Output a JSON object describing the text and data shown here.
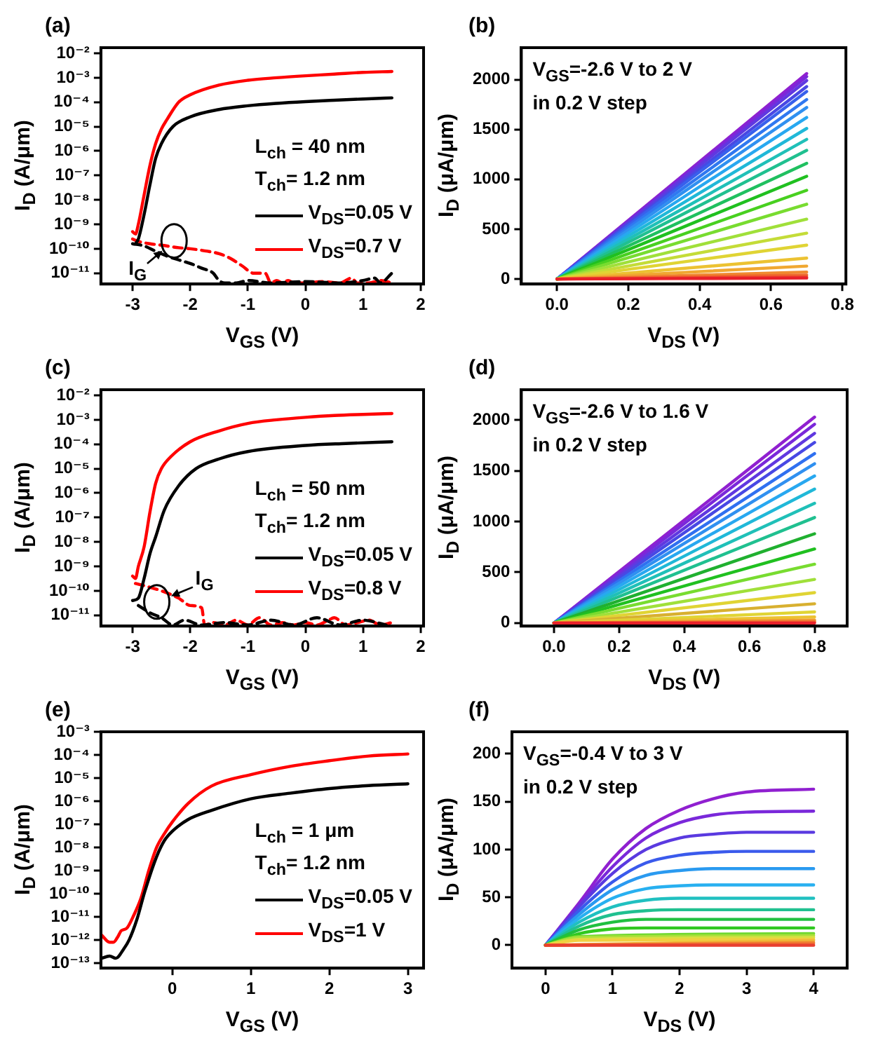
{
  "chart_data": [
    {
      "type": "line",
      "title": "(a)",
      "xlabel": "V$_{GS}$ (V)",
      "ylabel": "I$_{D}$ (A/μm)",
      "log": "y",
      "legend": "right",
      "xlim": [
        -3.55,
        2.05
      ],
      "xticks": [
        -3,
        -2,
        -1,
        0,
        1,
        2
      ],
      "ylim": [
        3.6e-12,
        0.017
      ],
      "yticks": [
        {
          "value": 0.01,
          "label": "10⁻²"
        },
        {
          "value": 0.001,
          "label": "10⁻³"
        },
        {
          "value": 0.0001,
          "label": "10⁻⁴"
        },
        {
          "value": 1e-05,
          "label": "10⁻⁵"
        },
        {
          "value": 1e-06,
          "label": "10⁻⁶"
        },
        {
          "value": 1e-07,
          "label": "10⁻⁷"
        },
        {
          "value": 1e-08,
          "label": "10⁻⁸"
        },
        {
          "value": 1e-09,
          "label": "10⁻⁹"
        },
        {
          "value": 1e-10,
          "label": "10⁻¹⁰"
        },
        {
          "value": 1e-11,
          "label": "10⁻¹¹"
        }
      ],
      "annotations": [
        "L$_{ch}$ = 40 nm",
        "T$_{ch}$= 1.2 nm",
        {
          "text": "I$_{G}$",
          "x": -2.28,
          "y": 2.1e-10
        }
      ],
      "series": [
        {
          "name": "V$_{DS}$=0.05 V",
          "color": "#000000",
          "x": [
            -2.95,
            -2.9,
            -2.8,
            -2.7,
            -2.6,
            -2.5,
            -2.3,
            -2,
            -1.5,
            -1,
            -0.5,
            0,
            0.5,
            1,
            1.5
          ],
          "values": [
            1.6e-10,
            2.5e-10,
            2.5e-09,
            4e-08,
            5e-07,
            2e-06,
            1e-05,
            2.5e-05,
            5e-05,
            7.1e-05,
            8.9e-05,
            0.000105,
            0.00012,
            0.000135,
            0.00015
          ]
        },
        {
          "name": "V$_{DS}$=0.7 V",
          "color": "#ff0000",
          "x": [
            -3,
            -2.95,
            -2.9,
            -2.8,
            -2.7,
            -2.6,
            -2.5,
            -2.4,
            -2.2,
            -2,
            -1.5,
            -1,
            -0.5,
            0,
            0.5,
            1,
            1.5
          ],
          "values": [
            5e-10,
            4e-10,
            1e-09,
            1.6e-08,
            2.5e-07,
            2e-06,
            7.9e-06,
            2e-05,
            0.0001,
            0.0002,
            0.0005,
            0.00079,
            0.001,
            0.0012,
            0.0014,
            0.00166,
            0.0018
          ]
        },
        {
          "color": "#000000",
          "line_style": "dashed",
          "x": [
            -3,
            -2.8,
            -2.6,
            -2.4,
            -2.2,
            -2,
            -1.8,
            -1.6,
            -1.5,
            -1.4,
            -1.2,
            -1,
            -0.6,
            0,
            0.6,
            1,
            1.2,
            1.3,
            1.5
          ],
          "values": [
            1.6e-10,
            1.3e-10,
            7.9e-11,
            5e-11,
            3.5e-11,
            2.5e-11,
            1.6e-11,
            1e-11,
            5e-12,
            4e-12,
            4e-12,
            5e-12,
            4e-12,
            4.5e-12,
            4e-12,
            5e-12,
            6.3e-12,
            4e-12,
            1e-11
          ]
        },
        {
          "color": "#ff0000",
          "line_style": "dashed",
          "x": [
            -3,
            -2.9,
            -2.7,
            -2.5,
            -2.2,
            -2,
            -1.7,
            -1.5,
            -1.3,
            -1.1,
            -0.9,
            -0.7,
            -0.6,
            -0.5,
            -0.4,
            -0.3,
            -0.2,
            0,
            0.3,
            0.6,
            0.8,
            0.9,
            1.1,
            1.3,
            1.5
          ],
          "values": [
            2.5e-10,
            2e-10,
            1.6e-10,
            1.4e-10,
            1.1e-10,
            1e-10,
            7.9e-11,
            6.3e-11,
            4e-11,
            2e-11,
            1e-11,
            1e-11,
            4e-12,
            5e-12,
            4e-12,
            5e-12,
            4e-12,
            4e-12,
            4.5e-12,
            4e-12,
            6.3e-12,
            4e-12,
            4e-12,
            5e-12,
            4e-12
          ]
        }
      ]
    },
    {
      "type": "line",
      "title": "(b)",
      "xlabel": "V$_{DS}$ (V)",
      "ylabel": "I$_{D}$ (μA/μm)",
      "xlim": [
        -0.1,
        0.81
      ],
      "xticks": [
        {
          "value": 0,
          "label": "0.0"
        },
        0.2,
        0.4,
        0.6,
        0.8
      ],
      "ylim": [
        -50,
        2320
      ],
      "yticks": [
        0,
        500,
        1000,
        1500,
        2000
      ],
      "annotations": [
        "V$_{GS}$=-2.6 V to 2 V",
        "in 0.2 V step"
      ],
      "series": [
        {
          "color": "#e8202a",
          "x": [
            0,
            0.7
          ],
          "values": [
            0,
            10
          ]
        },
        {
          "color": "#ec4a2c",
          "x": [
            0,
            0.7
          ],
          "values": [
            0,
            20
          ]
        },
        {
          "color": "#ef6a2e",
          "x": [
            0,
            0.7
          ],
          "values": [
            0,
            40
          ]
        },
        {
          "color": "#f08a30",
          "x": [
            0,
            0.7
          ],
          "values": [
            0,
            70
          ]
        },
        {
          "color": "#f0a832",
          "x": [
            0,
            0.7
          ],
          "values": [
            0,
            130
          ]
        },
        {
          "color": "#ecc232",
          "x": [
            0,
            0.7
          ],
          "values": [
            0,
            210
          ]
        },
        {
          "color": "#e0d434",
          "x": [
            0,
            0.7
          ],
          "values": [
            0,
            340
          ]
        },
        {
          "color": "#c4dc38",
          "x": [
            0,
            0.7
          ],
          "values": [
            0,
            460
          ]
        },
        {
          "color": "#a0e03a",
          "x": [
            0,
            0.7
          ],
          "values": [
            0,
            600
          ]
        },
        {
          "color": "#78dc30",
          "x": [
            0,
            0.7
          ],
          "values": [
            0,
            750
          ]
        },
        {
          "color": "#48d020",
          "x": [
            0,
            0.7
          ],
          "values": [
            0,
            890
          ]
        },
        {
          "color": "#20c020",
          "x": [
            0,
            0.7
          ],
          "values": [
            0,
            1030
          ]
        },
        {
          "color": "#20c060",
          "x": [
            0,
            0.7
          ],
          "values": [
            0,
            1160
          ]
        },
        {
          "color": "#20c090",
          "x": [
            0,
            0.7
          ],
          "values": [
            0,
            1290
          ]
        },
        {
          "color": "#20c0b8",
          "x": [
            0,
            0.7
          ],
          "values": [
            0,
            1400
          ]
        },
        {
          "color": "#20b8d8",
          "x": [
            0,
            0.7
          ],
          "values": [
            0,
            1510
          ]
        },
        {
          "color": "#28a8f0",
          "x": [
            0,
            0.7
          ],
          "values": [
            0,
            1620
          ]
        },
        {
          "color": "#3090f0",
          "x": [
            0,
            0.7
          ],
          "values": [
            0,
            1720
          ]
        },
        {
          "color": "#3078f0",
          "x": [
            0,
            0.7
          ],
          "values": [
            0,
            1800
          ]
        },
        {
          "color": "#3860ec",
          "x": [
            0,
            0.7
          ],
          "values": [
            0,
            1880
          ]
        },
        {
          "color": "#4848e4",
          "x": [
            0,
            0.7
          ],
          "values": [
            0,
            1930
          ]
        },
        {
          "color": "#6038e0",
          "x": [
            0,
            0.7
          ],
          "values": [
            0,
            1990
          ]
        },
        {
          "color": "#7a28da",
          "x": [
            0,
            0.7
          ],
          "values": [
            0,
            2030
          ]
        },
        {
          "color": "#9020d0",
          "x": [
            0,
            0.7
          ],
          "values": [
            0,
            2060
          ]
        }
      ]
    },
    {
      "type": "line",
      "title": "(c)",
      "xlabel": "V$_{GS}$ (V)",
      "ylabel": "I$_{D}$ (A/μm)",
      "log": "y",
      "legend": "right",
      "xlim": [
        -3.55,
        2.05
      ],
      "xticks": [
        -3,
        -2,
        -1,
        0,
        1,
        2
      ],
      "ylim": [
        3.6e-12,
        0.017
      ],
      "yticks": [
        {
          "value": 0.01,
          "label": "10⁻²"
        },
        {
          "value": 0.001,
          "label": "10⁻³"
        },
        {
          "value": 0.0001,
          "label": "10⁻⁴"
        },
        {
          "value": 1e-05,
          "label": "10⁻⁵"
        },
        {
          "value": 1e-06,
          "label": "10⁻⁶"
        },
        {
          "value": 1e-07,
          "label": "10⁻⁷"
        },
        {
          "value": 1e-08,
          "label": "10⁻⁸"
        },
        {
          "value": 1e-09,
          "label": "10⁻⁹"
        },
        {
          "value": 1e-10,
          "label": "10⁻¹⁰"
        },
        {
          "value": 1e-11,
          "label": "10⁻¹¹"
        }
      ],
      "annotations": [
        "L$_{ch}$ = 50 nm",
        "T$_{ch}$= 1.2 nm",
        {
          "text": "I$_{G}$",
          "x": -2.58,
          "y": 3.5e-11
        }
      ],
      "series": [
        {
          "name": "V$_{DS}$=0.05 V",
          "color": "#000000",
          "x": [
            -3,
            -2.9,
            -2.8,
            -2.7,
            -2.6,
            -2.45,
            -2.2,
            -1.9,
            -1.5,
            -1,
            0,
            0.7,
            1.5
          ],
          "values": [
            4e-11,
            5e-11,
            3.2e-10,
            3.2e-09,
            1.6e-08,
            2e-07,
            2e-06,
            1e-05,
            2.5e-05,
            5e-05,
            8.9e-05,
            0.000107,
            0.000126
          ]
        },
        {
          "name": "V$_{DS}$=0.8 V",
          "color": "#ff0000",
          "x": [
            -3,
            -2.95,
            -2.9,
            -2.8,
            -2.7,
            -2.6,
            -2.5,
            -2.33,
            -2,
            -1.5,
            -1,
            -0.5,
            0,
            0.5,
            1,
            1.5
          ],
          "values": [
            4e-10,
            3.2e-10,
            1e-09,
            6.3e-09,
            1.6e-07,
            2.5e-06,
            1e-05,
            3.2e-05,
            0.000126,
            0.00035,
            0.00071,
            0.001,
            0.00126,
            0.0015,
            0.00166,
            0.0018
          ]
        },
        {
          "color": "#000000",
          "line_style": "dashed",
          "x": [
            -2.9,
            -2.7,
            -2.5,
            -2.3,
            -2.1,
            -1.8,
            -1.4,
            -1,
            -0.6,
            -0.2,
            0.2,
            0.6,
            1,
            1.4
          ],
          "values": [
            2.5e-11,
            1.26e-11,
            7.9e-12,
            4e-12,
            6.3e-12,
            4e-12,
            5e-12,
            4e-12,
            6.3e-12,
            4e-12,
            7.9e-12,
            4e-12,
            6.3e-12,
            4e-12
          ]
        },
        {
          "color": "#ff0000",
          "line_style": "dashed",
          "x": [
            -2.95,
            -2.7,
            -2.5,
            -2.2,
            -2,
            -1.8,
            -1.75,
            -1.6,
            -1.4,
            -1.2,
            -1,
            -0.8,
            -0.6,
            -0.4,
            -0.2,
            0,
            0.2,
            0.4,
            0.5,
            0.7,
            0.9,
            1.1,
            1.3,
            1.5
          ],
          "values": [
            2e-10,
            1.4e-10,
            1e-10,
            5e-11,
            2.5e-11,
            2e-11,
            4e-12,
            5e-12,
            4e-12,
            6.3e-12,
            4e-12,
            7.9e-12,
            4e-12,
            5e-12,
            4e-12,
            5e-12,
            4e-12,
            6.3e-12,
            7.9e-12,
            4e-12,
            5e-12,
            6.3e-12,
            4e-12,
            5e-12
          ]
        }
      ]
    },
    {
      "type": "line",
      "title": "(d)",
      "xlabel": "V$_{DS}$ (V)",
      "ylabel": "I$_{D}$ (μA/μm)",
      "xlim": [
        -0.1,
        0.9
      ],
      "xticks": [
        {
          "value": 0,
          "label": "0.0"
        },
        0.2,
        0.4,
        0.6,
        0.8
      ],
      "ylim": [
        -30,
        2300
      ],
      "yticks": [
        0,
        500,
        1000,
        1500,
        2000
      ],
      "annotations": [
        "V$_{GS}$=-2.6 V to 1.6 V",
        "in 0.2 V step"
      ],
      "series": [
        {
          "color": "#e8202a",
          "x": [
            0,
            0.8
          ],
          "values": [
            0,
            0
          ]
        },
        {
          "color": "#ef6a2e",
          "x": [
            0,
            0.8
          ],
          "values": [
            0,
            10
          ]
        },
        {
          "color": "#f08a30",
          "x": [
            0,
            0.8
          ],
          "values": [
            0,
            20
          ]
        },
        {
          "color": "#f0a832",
          "x": [
            0,
            0.8
          ],
          "values": [
            0,
            30
          ]
        },
        {
          "color": "#ecc232",
          "x": [
            0,
            0.8
          ],
          "values": [
            0,
            60
          ]
        },
        {
          "color": "#e0d434",
          "x": [
            0,
            0.8
          ],
          "values": [
            0,
            110
          ]
        },
        {
          "color": "#d8b030",
          "x": [
            0,
            0.8
          ],
          "values": [
            0,
            190
          ]
        },
        {
          "color": "#e0d434",
          "x": [
            0,
            0.8
          ],
          "values": [
            0,
            300
          ]
        },
        {
          "color": "#a0e03a",
          "x": [
            0,
            0.8
          ],
          "values": [
            0,
            430
          ]
        },
        {
          "color": "#78dc30",
          "x": [
            0,
            0.8
          ],
          "values": [
            0,
            580
          ]
        },
        {
          "color": "#20c020",
          "x": [
            0,
            0.8
          ],
          "values": [
            0,
            730
          ]
        },
        {
          "color": "#20b030",
          "x": [
            0,
            0.8
          ],
          "values": [
            0,
            880
          ]
        },
        {
          "color": "#20c090",
          "x": [
            0,
            0.8
          ],
          "values": [
            0,
            1040
          ]
        },
        {
          "color": "#20c0b8",
          "x": [
            0,
            0.8
          ],
          "values": [
            0,
            1180
          ]
        },
        {
          "color": "#20b8d8",
          "x": [
            0,
            0.8
          ],
          "values": [
            0,
            1320
          ]
        },
        {
          "color": "#28a8f0",
          "x": [
            0,
            0.8
          ],
          "values": [
            0,
            1450
          ]
        },
        {
          "color": "#3090f0",
          "x": [
            0,
            0.8
          ],
          "values": [
            0,
            1570
          ]
        },
        {
          "color": "#3070f0",
          "x": [
            0,
            0.8
          ],
          "values": [
            0,
            1670
          ]
        },
        {
          "color": "#4848e4",
          "x": [
            0,
            0.8
          ],
          "values": [
            0,
            1780
          ]
        },
        {
          "color": "#6038e0",
          "x": [
            0,
            0.8
          ],
          "values": [
            0,
            1870
          ]
        },
        {
          "color": "#7a28da",
          "x": [
            0,
            0.8
          ],
          "values": [
            0,
            1960
          ]
        },
        {
          "color": "#9020d0",
          "x": [
            0,
            0.8
          ],
          "values": [
            0,
            2030
          ]
        }
      ]
    },
    {
      "type": "line",
      "title": "(e)",
      "xlabel": "V$_{GS}$ (V)",
      "ylabel": "I$_{D}$ (A/μm)",
      "log": "y",
      "legend": "right",
      "xlim": [
        -0.91,
        3.2
      ],
      "xticks": [
        0,
        1,
        2,
        3
      ],
      "ylim": [
        6e-14,
        0.001
      ],
      "yticks": [
        {
          "value": 0.001,
          "label": "10⁻³"
        },
        {
          "value": 0.0001,
          "label": "10⁻⁴"
        },
        {
          "value": 1e-05,
          "label": "10⁻⁵"
        },
        {
          "value": 1e-06,
          "label": "10⁻⁶"
        },
        {
          "value": 1e-07,
          "label": "10⁻⁷"
        },
        {
          "value": 1e-08,
          "label": "10⁻⁸"
        },
        {
          "value": 1e-09,
          "label": "10⁻⁹"
        },
        {
          "value": 1e-10,
          "label": "10⁻¹⁰"
        },
        {
          "value": 1e-11,
          "label": "10⁻¹¹"
        },
        {
          "value": 1e-12,
          "label": "10⁻¹²"
        },
        {
          "value": 1e-13,
          "label": "10⁻¹³"
        }
      ],
      "annotations": [
        "L$_{ch}$ = 1 μm",
        "T$_{ch}$= 1.2 nm"
      ],
      "series": [
        {
          "name": "V$_{DS}$=0.05 V",
          "color": "#000000",
          "x": [
            -0.9,
            -0.8,
            -0.72,
            -0.62,
            -0.55,
            -0.45,
            -0.35,
            -0.2,
            -0.1,
            0,
            0.2,
            0.5,
            1,
            1.5,
            2,
            2.5,
            3
          ],
          "values": [
            1.6e-13,
            2e-13,
            1.6e-13,
            4e-13,
            1e-12,
            7.9e-12,
            1.26e-10,
            4e-09,
            2e-08,
            5e-08,
            1.6e-07,
            4e-07,
            1.26e-06,
            2.2e-06,
            3.5e-06,
            4.7e-06,
            5.6e-06
          ]
        },
        {
          "name": "V$_{DS}$=1 V",
          "color": "#ff0000",
          "x": [
            -0.9,
            -0.8,
            -0.75,
            -0.7,
            -0.65,
            -0.58,
            -0.5,
            -0.4,
            -0.3,
            -0.2,
            -0.1,
            0,
            0.2,
            0.5,
            1,
            1.5,
            2,
            2.5,
            3
          ],
          "values": [
            1.6e-12,
            7.9e-13,
            7.9e-13,
            1.26e-12,
            2.5e-12,
            3.2e-12,
            1e-11,
            6.3e-11,
            1e-09,
            1e-08,
            4e-08,
            1.26e-07,
            7.9e-07,
            4.5e-06,
            1.4e-05,
            3.2e-05,
            5.6e-05,
            8.9e-05,
            0.00011
          ]
        }
      ]
    },
    {
      "type": "line",
      "title": "(f)",
      "xlabel": "V$_{DS}$ (V)",
      "ylabel": "I$_{D}$ (μA/μm)",
      "xlim": [
        -0.5,
        4.5
      ],
      "xticks": [
        0,
        1,
        2,
        3,
        4
      ],
      "ylim": [
        -24,
        223
      ],
      "yticks": [
        0,
        50,
        100,
        150,
        200
      ],
      "annotations": [
        "V$_{GS}$=-0.4 V to 3 V",
        "in 0.2 V step"
      ],
      "series": [
        {
          "color": "#e84030",
          "x": [
            0,
            4
          ],
          "values": [
            0,
            0
          ]
        },
        {
          "color": "#f07830",
          "x": [
            0,
            4
          ],
          "values": [
            0,
            2
          ]
        },
        {
          "color": "#f09830",
          "x": [
            0,
            4
          ],
          "values": [
            0,
            3
          ]
        },
        {
          "color": "#f0b838",
          "x": [
            0,
            4
          ],
          "values": [
            0,
            5
          ]
        },
        {
          "color": "#f0d040",
          "x": [
            0,
            0.5,
            4
          ],
          "values": [
            0,
            5,
            6
          ]
        },
        {
          "color": "#d8e040",
          "x": [
            0,
            0.5,
            4
          ],
          "values": [
            0,
            6,
            8
          ]
        },
        {
          "color": "#a8e03a",
          "x": [
            0,
            0.5,
            4
          ],
          "values": [
            0,
            8,
            10
          ]
        },
        {
          "color": "#70d830",
          "x": [
            0,
            0.5,
            4
          ],
          "values": [
            0,
            9,
            12
          ]
        },
        {
          "color": "#30c820",
          "x": [
            0,
            0.5,
            1,
            1.5,
            4
          ],
          "values": [
            0,
            12,
            17,
            18,
            18
          ]
        },
        {
          "color": "#20c040",
          "x": [
            0,
            0.5,
            1,
            1.5,
            2,
            4
          ],
          "values": [
            0,
            16,
            24,
            27,
            27,
            27
          ]
        },
        {
          "color": "#20c090",
          "x": [
            0,
            0.5,
            1,
            1.5,
            2,
            4
          ],
          "values": [
            0,
            20,
            32,
            36,
            37,
            37
          ]
        },
        {
          "color": "#20c0c0",
          "x": [
            0,
            0.5,
            1,
            1.5,
            2,
            2.5,
            4
          ],
          "values": [
            0,
            24,
            40,
            47,
            49,
            49,
            49
          ]
        },
        {
          "color": "#28b0f0",
          "x": [
            0,
            0.5,
            1,
            1.5,
            2,
            2.5,
            3,
            4
          ],
          "values": [
            0,
            28,
            49,
            59,
            62,
            63,
            63,
            63
          ]
        },
        {
          "color": "#2a9af0",
          "x": [
            0,
            0.5,
            1,
            1.5,
            2,
            2.5,
            3,
            4
          ],
          "values": [
            0,
            32,
            58,
            73,
            78,
            80,
            80,
            80
          ]
        },
        {
          "color": "#3a5aec",
          "x": [
            0,
            0.5,
            1,
            1.5,
            2,
            2.5,
            3,
            4
          ],
          "values": [
            0,
            36,
            66,
            86,
            94,
            97,
            98,
            98
          ]
        },
        {
          "color": "#5a3ae0",
          "x": [
            0,
            0.5,
            1,
            1.5,
            2,
            2.5,
            3,
            4
          ],
          "values": [
            0,
            40,
            75,
            100,
            112,
            116,
            118,
            118
          ]
        },
        {
          "color": "#7a28da",
          "x": [
            0,
            0.5,
            1,
            1.5,
            2,
            2.5,
            3,
            4
          ],
          "values": [
            0,
            42,
            82,
            112,
            128,
            136,
            139,
            140
          ]
        },
        {
          "color": "#9020d0",
          "x": [
            0,
            0.5,
            1,
            1.5,
            2,
            2.5,
            3,
            4
          ],
          "values": [
            0,
            44,
            90,
            122,
            141,
            153,
            160,
            163
          ]
        }
      ]
    }
  ]
}
